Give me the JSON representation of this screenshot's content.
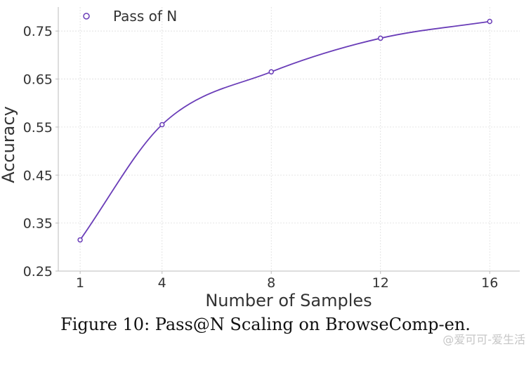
{
  "chart_data": {
    "type": "line",
    "title": "",
    "xlabel": "Number of Samples",
    "ylabel": "Accuracy",
    "x": [
      1,
      4,
      8,
      12,
      16
    ],
    "series": [
      {
        "name": "Pass of N",
        "values": [
          0.315,
          0.555,
          0.665,
          0.735,
          0.77
        ]
      }
    ],
    "xlim": [
      0.2,
      17.1
    ],
    "ylim": [
      0.25,
      0.8
    ],
    "xticks": [
      1,
      4,
      8,
      12,
      16
    ],
    "yticks": [
      0.25,
      0.35,
      0.45,
      0.55,
      0.65,
      0.75
    ],
    "ytick_labels": [
      "0.25",
      "0.35",
      "0.45",
      "0.55",
      "0.65",
      "0.75"
    ],
    "grid": true,
    "legend_position": "top-left",
    "color": "#6a3db8"
  },
  "caption": "Figure 10: Pass@N Scaling on BrowseComp-en.",
  "watermark": "@爱可可-爱生活"
}
